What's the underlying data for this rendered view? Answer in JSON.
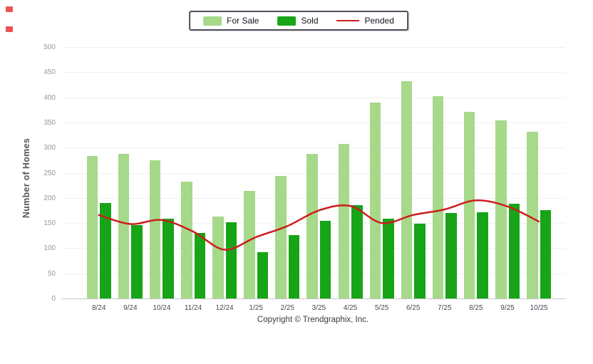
{
  "legend": {
    "items": [
      {
        "label": "For Sale",
        "type": "swatch",
        "color": "#a6d98a"
      },
      {
        "label": "Sold",
        "type": "swatch",
        "color": "#17a517"
      },
      {
        "label": "Pended",
        "type": "line",
        "color": "#cc1d1d"
      }
    ]
  },
  "chart_data": {
    "type": "bar",
    "title": "",
    "xlabel": "",
    "ylabel": "Number of Homes",
    "ylim": [
      0,
      500
    ],
    "yticks": [
      0,
      50,
      100,
      150,
      200,
      250,
      300,
      350,
      400,
      450,
      500
    ],
    "grid": true,
    "legend_position": "top-center",
    "categories": [
      "8/24",
      "9/24",
      "10/24",
      "11/24",
      "12/24",
      "1/25",
      "2/25",
      "3/25",
      "4/25",
      "5/25",
      "6/25",
      "7/25",
      "8/25",
      "9/25",
      "10/25"
    ],
    "series": [
      {
        "name": "For Sale",
        "type": "bar",
        "color": "#a6d98a",
        "values": [
          284,
          287,
          275,
          232,
          163,
          214,
          244,
          287,
          307,
          389,
          432,
          402,
          371,
          354,
          331
        ]
      },
      {
        "name": "Sold",
        "type": "bar",
        "color": "#17a517",
        "values": [
          190,
          146,
          159,
          131,
          152,
          92,
          126,
          154,
          185,
          158,
          149,
          170,
          172,
          188,
          175
        ]
      },
      {
        "name": "Pended",
        "type": "line",
        "color": "#cc1d1d",
        "values": [
          166,
          148,
          156,
          133,
          97,
          122,
          144,
          175,
          184,
          150,
          166,
          177,
          195,
          183,
          153
        ]
      }
    ]
  },
  "footer": {
    "copyright": "Copyright © Trendgraphix, Inc."
  }
}
